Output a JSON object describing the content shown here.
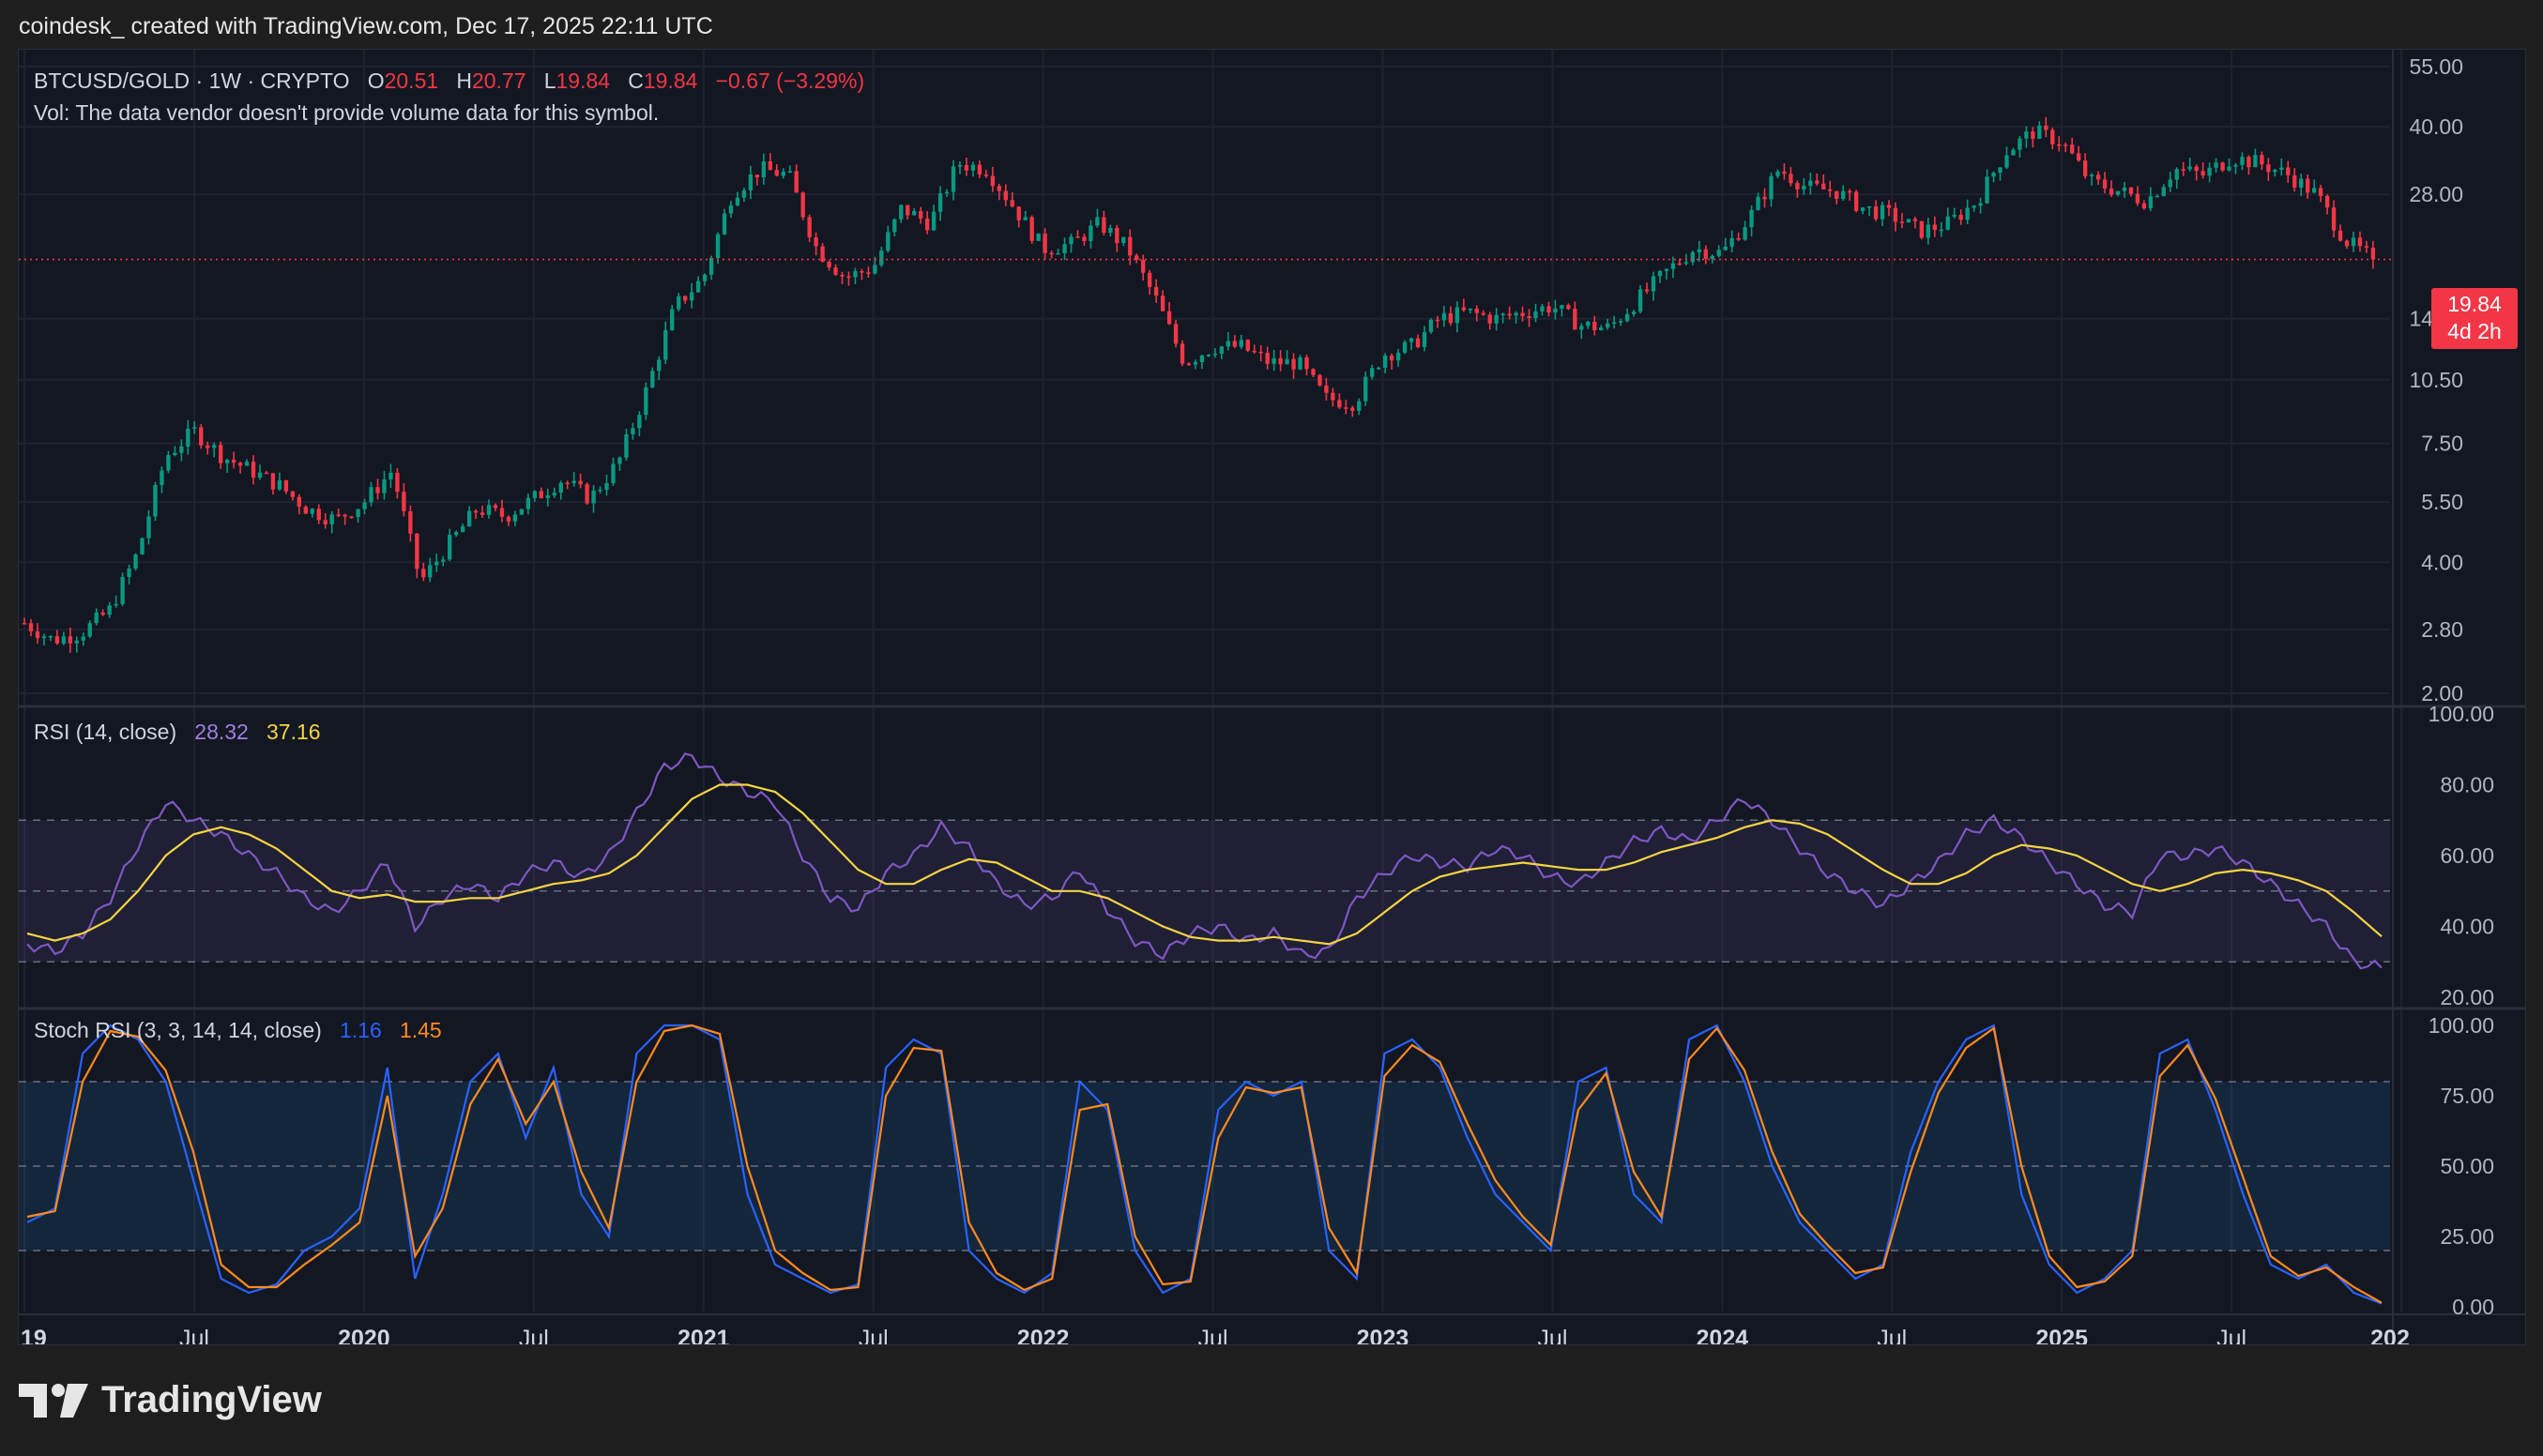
{
  "header": {
    "title": "coindesk_ created with TradingView.com, Dec 17, 2025 22:11 UTC"
  },
  "legend": {
    "symbol": "BTCUSD/GOLD · 1W · CRYPTO",
    "o_label": "O",
    "o_value": "20.51",
    "h_label": "H",
    "h_value": "20.77",
    "l_label": "L",
    "l_value": "19.84",
    "c_label": "C",
    "c_value": "19.84",
    "change": "−0.67 (−3.29%)",
    "vol_note": "Vol: The data vendor doesn't provide volume data for this symbol."
  },
  "rsi_legend": {
    "label": "RSI (14, close)",
    "rsi_value": "28.32",
    "ma_value": "37.16"
  },
  "stoch_legend": {
    "label": "Stoch RSI (3, 3, 14, 14, close)",
    "k_value": "1.16",
    "d_value": "1.45"
  },
  "price_tag": {
    "price": "19.84",
    "countdown": "4d 2h"
  },
  "footer": {
    "brand": "TradingView"
  },
  "colors": {
    "up": "#089981",
    "down": "#f23645",
    "rsi_line": "#7e57c2",
    "rsi_ma": "#f5d442",
    "stoch_k": "#2962ff",
    "stoch_d": "#ff8a1e",
    "background": "#131722"
  },
  "chart_data": [
    {
      "type": "candlestick",
      "scale": "log",
      "ylim": [
        2.0,
        55.0
      ],
      "yticks": [
        "55.00",
        "40.00",
        "28.00",
        "19.84",
        "14.50",
        "10.50",
        "7.50",
        "5.50",
        "4.00",
        "2.80",
        "2.00"
      ],
      "last_price": 19.84,
      "xticks": [
        "19",
        "Jul",
        "2020",
        "Jul",
        "2021",
        "Jul",
        "2022",
        "Jul",
        "2023",
        "Jul",
        "2024",
        "Jul",
        "2025",
        "Jul",
        "202"
      ],
      "x_range": [
        "2019-01",
        "2025-12"
      ],
      "close_path": [
        [
          "2019-01",
          2.9
        ],
        [
          "2019-02",
          2.65
        ],
        [
          "2019-03",
          2.75
        ],
        [
          "2019-04",
          3.1
        ],
        [
          "2019-05",
          4.2
        ],
        [
          "2019-06",
          7.0
        ],
        [
          "2019-07",
          8.0
        ],
        [
          "2019-08",
          7.0
        ],
        [
          "2019-09",
          6.5
        ],
        [
          "2019-10",
          6.0
        ],
        [
          "2019-11",
          5.3
        ],
        [
          "2019-12",
          5.0
        ],
        [
          "2020-01",
          5.5
        ],
        [
          "2020-02",
          6.5
        ],
        [
          "2020-03",
          3.6
        ],
        [
          "2020-04",
          4.4
        ],
        [
          "2020-05",
          5.3
        ],
        [
          "2020-06",
          5.1
        ],
        [
          "2020-07",
          5.6
        ],
        [
          "2020-08",
          6.2
        ],
        [
          "2020-09",
          5.6
        ],
        [
          "2020-10",
          6.8
        ],
        [
          "2020-11",
          10.0
        ],
        [
          "2020-12",
          15.5
        ],
        [
          "2021-01",
          18.0
        ],
        [
          "2021-02",
          28.0
        ],
        [
          "2021-03",
          32.0
        ],
        [
          "2021-04",
          31.0
        ],
        [
          "2021-05",
          21.0
        ],
        [
          "2021-06",
          18.0
        ],
        [
          "2021-07",
          19.0
        ],
        [
          "2021-08",
          26.0
        ],
        [
          "2021-09",
          24.0
        ],
        [
          "2021-10",
          33.0
        ],
        [
          "2021-11",
          32.0
        ],
        [
          "2021-12",
          26.0
        ],
        [
          "2022-01",
          21.0
        ],
        [
          "2022-02",
          21.5
        ],
        [
          "2022-03",
          24.0
        ],
        [
          "2022-04",
          21.0
        ],
        [
          "2022-05",
          16.0
        ],
        [
          "2022-06",
          11.5
        ],
        [
          "2022-07",
          12.5
        ],
        [
          "2022-08",
          12.5
        ],
        [
          "2022-09",
          11.5
        ],
        [
          "2022-10",
          11.5
        ],
        [
          "2022-11",
          9.5
        ],
        [
          "2022-12",
          9.3
        ],
        [
          "2023-01",
          12.0
        ],
        [
          "2023-02",
          12.5
        ],
        [
          "2023-03",
          14.5
        ],
        [
          "2023-04",
          15.0
        ],
        [
          "2023-05",
          14.5
        ],
        [
          "2023-06",
          15.0
        ],
        [
          "2023-07",
          15.5
        ],
        [
          "2023-08",
          14.0
        ],
        [
          "2023-09",
          13.8
        ],
        [
          "2023-10",
          16.0
        ],
        [
          "2023-11",
          18.5
        ],
        [
          "2023-12",
          21.0
        ],
        [
          "2024-01",
          20.5
        ],
        [
          "2024-02",
          25.0
        ],
        [
          "2024-03",
          32.0
        ],
        [
          "2024-04",
          29.0
        ],
        [
          "2024-05",
          28.5
        ],
        [
          "2024-06",
          26.0
        ],
        [
          "2024-07",
          25.0
        ],
        [
          "2024-08",
          23.0
        ],
        [
          "2024-09",
          24.0
        ],
        [
          "2024-10",
          27.0
        ],
        [
          "2024-11",
          35.0
        ],
        [
          "2024-12",
          39.0
        ],
        [
          "2025-01",
          37.0
        ],
        [
          "2025-02",
          30.0
        ],
        [
          "2025-03",
          28.5
        ],
        [
          "2025-04",
          27.0
        ],
        [
          "2025-05",
          32.0
        ],
        [
          "2025-06",
          31.0
        ],
        [
          "2025-07",
          34.0
        ],
        [
          "2025-08",
          33.0
        ],
        [
          "2025-09",
          31.0
        ],
        [
          "2025-10",
          28.0
        ],
        [
          "2025-11",
          22.0
        ],
        [
          "2025-12",
          19.84
        ]
      ]
    },
    {
      "type": "line",
      "title": "RSI (14, close)",
      "ylim": [
        20,
        100
      ],
      "yticks": [
        "100.00",
        "80.00",
        "60.00",
        "40.00",
        "20.00"
      ],
      "bands": {
        "upper": 70,
        "middle": 50,
        "lower": 30
      },
      "series": [
        {
          "name": "RSI",
          "values": [
            35,
            33,
            38,
            48,
            63,
            75,
            70,
            66,
            60,
            55,
            48,
            44,
            50,
            58,
            40,
            48,
            52,
            48,
            55,
            58,
            54,
            60,
            72,
            85,
            88,
            82,
            78,
            75,
            60,
            48,
            45,
            55,
            60,
            68,
            62,
            52,
            46,
            48,
            56,
            45,
            36,
            32,
            38,
            40,
            36,
            38,
            32,
            33,
            48,
            55,
            60,
            58,
            57,
            62,
            60,
            54,
            52,
            58,
            64,
            67,
            64,
            70,
            76,
            70,
            62,
            55,
            50,
            46,
            52,
            58,
            66,
            70,
            65,
            58,
            52,
            46,
            44,
            60,
            60,
            62,
            58,
            52,
            46,
            40,
            30,
            28.32
          ]
        },
        {
          "name": "RSI MA",
          "values": [
            38,
            36,
            38,
            42,
            50,
            60,
            66,
            68,
            66,
            62,
            56,
            50,
            48,
            49,
            47,
            47,
            48,
            48,
            50,
            52,
            53,
            55,
            60,
            68,
            76,
            80,
            80,
            78,
            72,
            64,
            56,
            52,
            52,
            56,
            59,
            58,
            54,
            50,
            50,
            48,
            44,
            40,
            37,
            36,
            36,
            37,
            36,
            35,
            38,
            44,
            50,
            54,
            56,
            57,
            58,
            57,
            56,
            56,
            58,
            61,
            63,
            65,
            68,
            70,
            69,
            66,
            61,
            56,
            52,
            52,
            55,
            60,
            63,
            62,
            60,
            56,
            52,
            50,
            52,
            55,
            56,
            55,
            53,
            50,
            44,
            37.16
          ]
        }
      ]
    },
    {
      "type": "line",
      "title": "Stoch RSI (3, 3, 14, 14, close)",
      "ylim": [
        0,
        100
      ],
      "yticks": [
        "100.00",
        "75.00",
        "50.00",
        "25.00",
        "0.00"
      ],
      "bands": {
        "upper": 80,
        "middle": 50,
        "lower": 20
      },
      "series": [
        {
          "name": "K",
          "values": [
            30,
            35,
            90,
            100,
            95,
            80,
            45,
            10,
            5,
            8,
            20,
            25,
            35,
            85,
            10,
            40,
            80,
            90,
            60,
            85,
            40,
            25,
            90,
            100,
            100,
            95,
            40,
            15,
            10,
            5,
            8,
            85,
            95,
            90,
            20,
            10,
            5,
            12,
            80,
            70,
            20,
            5,
            10,
            70,
            80,
            75,
            80,
            20,
            10,
            90,
            95,
            85,
            60,
            40,
            30,
            20,
            80,
            85,
            40,
            30,
            95,
            100,
            80,
            50,
            30,
            20,
            10,
            15,
            55,
            80,
            95,
            100,
            40,
            15,
            5,
            10,
            20,
            90,
            95,
            70,
            40,
            15,
            10,
            15,
            5,
            1.16
          ]
        },
        {
          "name": "D",
          "values": [
            32,
            34,
            80,
            98,
            96,
            84,
            55,
            15,
            7,
            7,
            15,
            22,
            30,
            75,
            18,
            35,
            72,
            88,
            65,
            80,
            48,
            28,
            80,
            98,
            100,
            97,
            50,
            20,
            12,
            6,
            7,
            75,
            92,
            91,
            30,
            12,
            6,
            10,
            70,
            72,
            25,
            8,
            9,
            60,
            78,
            76,
            78,
            28,
            12,
            82,
            93,
            87,
            65,
            45,
            32,
            22,
            70,
            83,
            48,
            32,
            88,
            99,
            84,
            55,
            33,
            22,
            12,
            14,
            48,
            76,
            92,
            99,
            50,
            18,
            7,
            9,
            18,
            82,
            93,
            74,
            46,
            18,
            11,
            14,
            7,
            1.45
          ]
        }
      ]
    }
  ]
}
